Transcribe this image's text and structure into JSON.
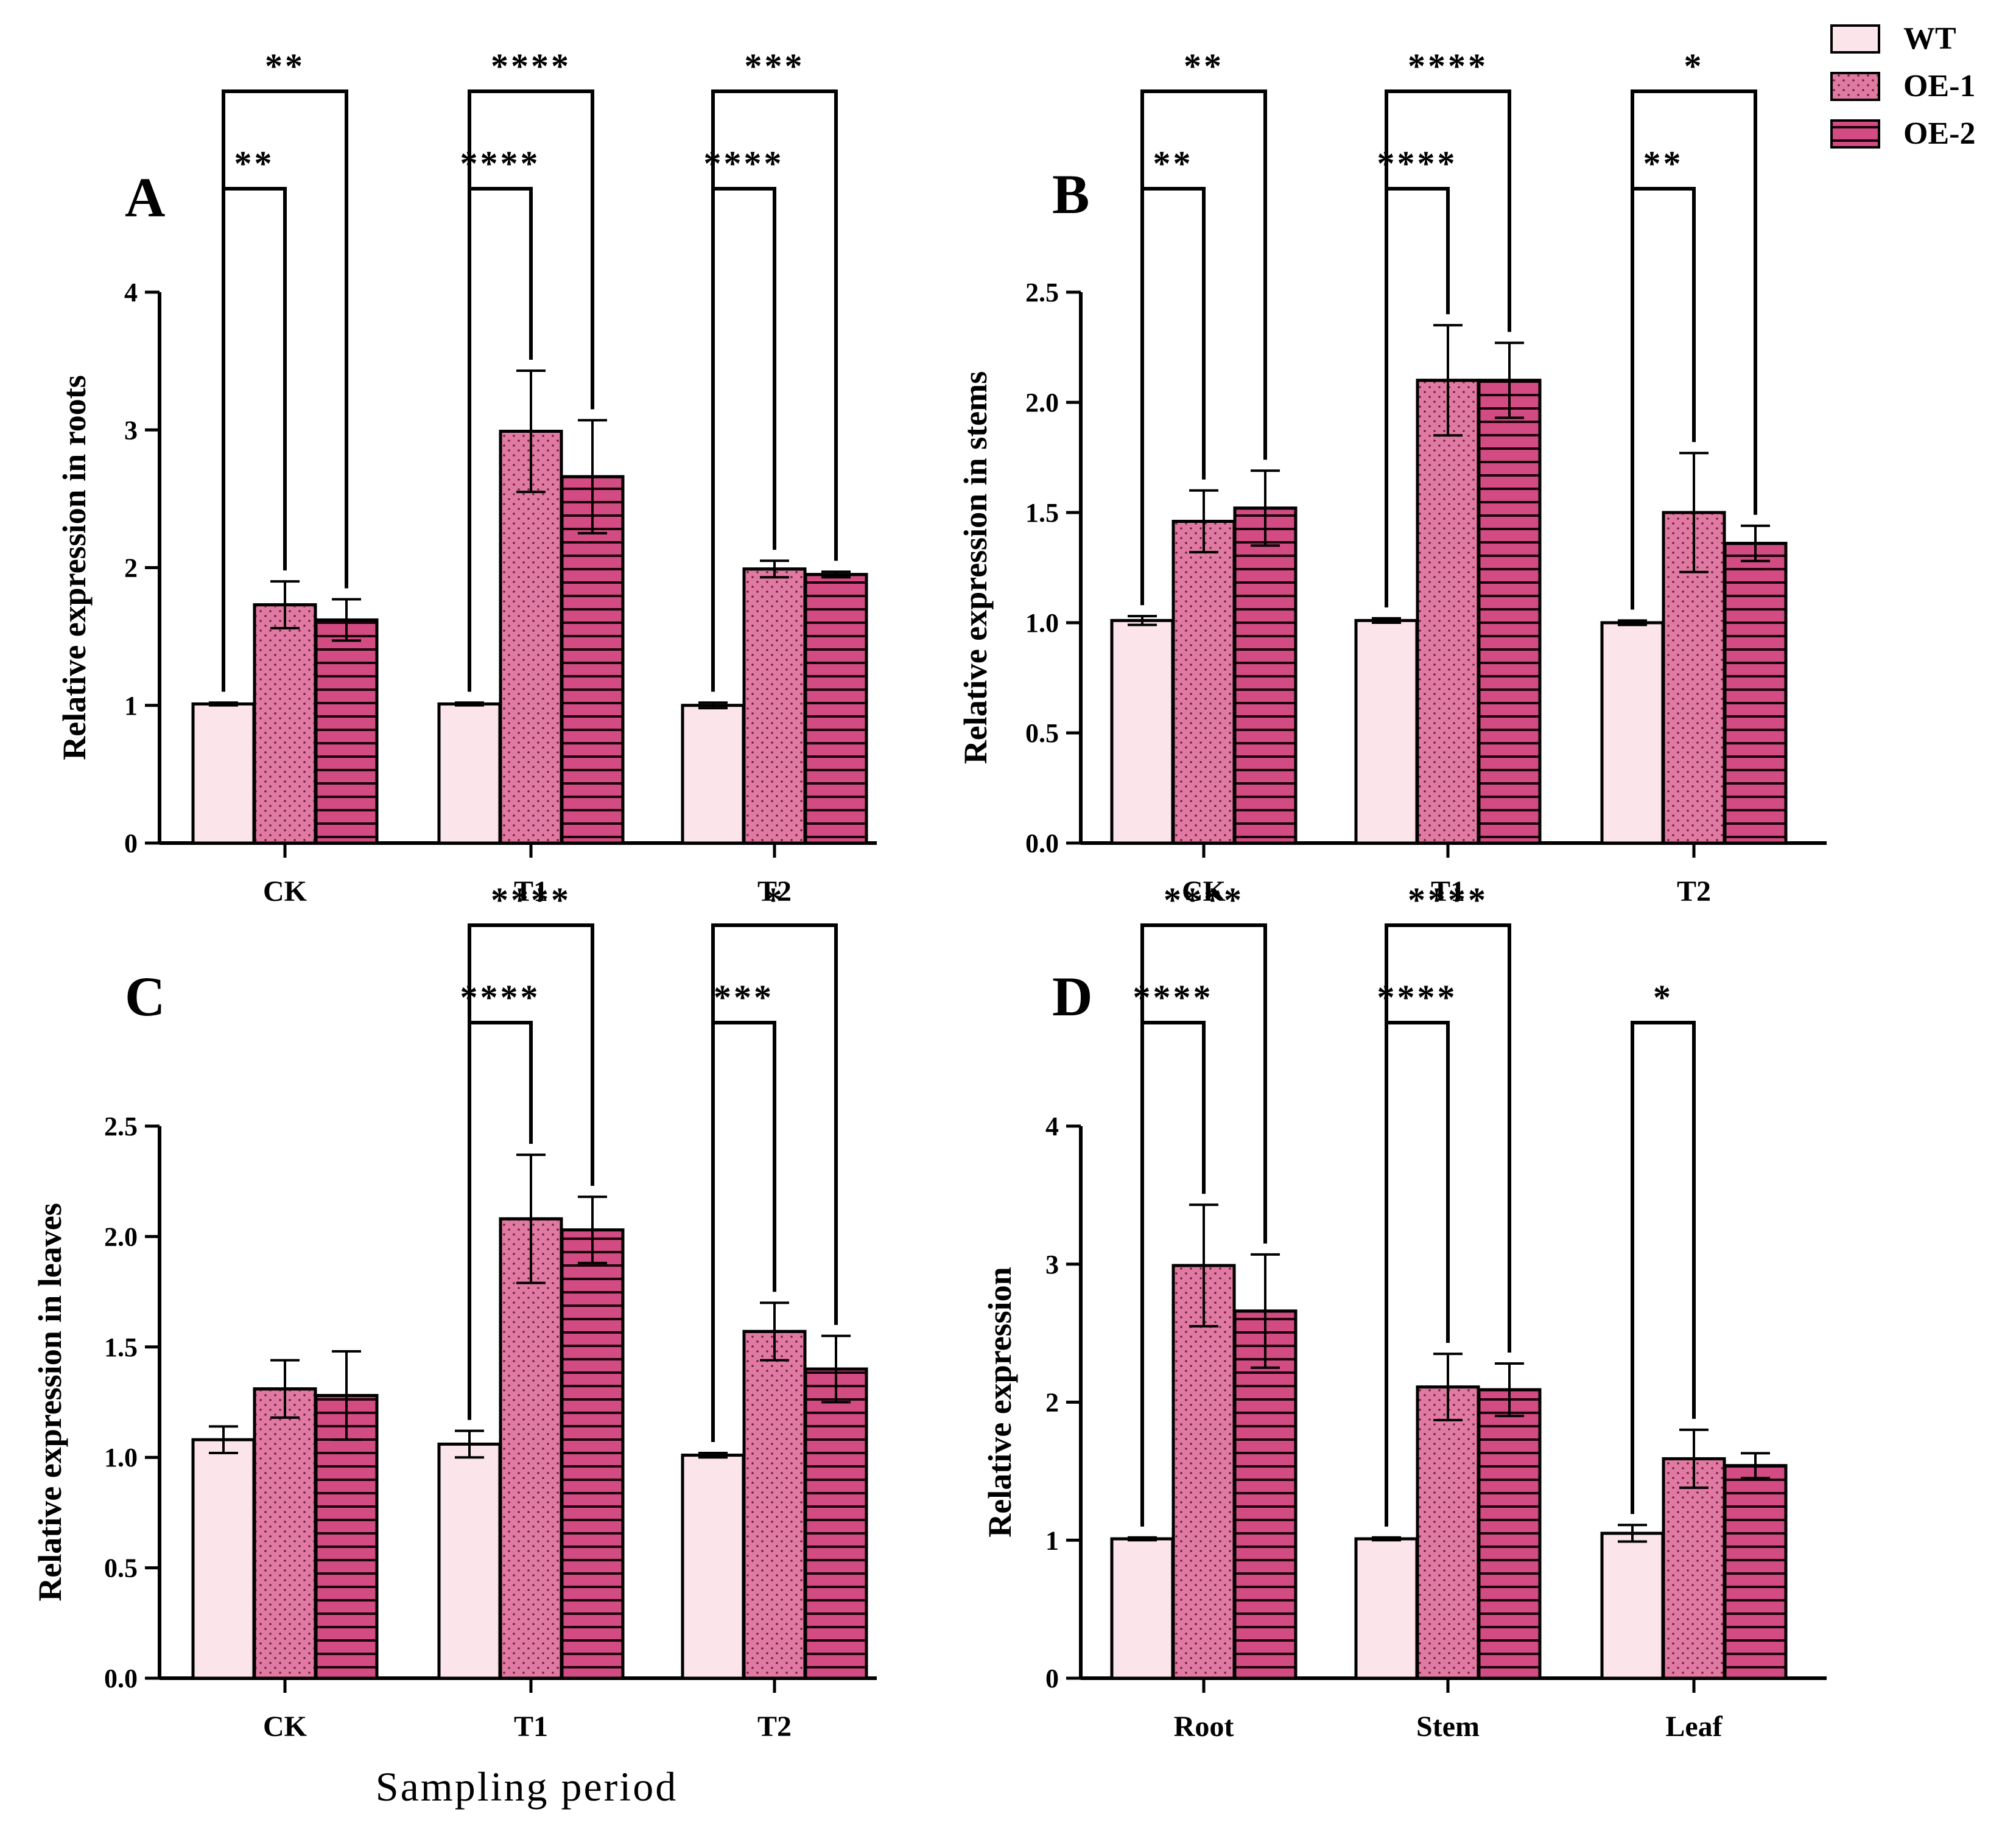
{
  "legend": {
    "items": [
      {
        "name": "WT",
        "color": "#fbe4ea",
        "pattern": "none"
      },
      {
        "name": "OE-1",
        "color": "#e07aa2",
        "pattern": "dots"
      },
      {
        "name": "OE-2",
        "color": "#d24b83",
        "pattern": "lines"
      }
    ]
  },
  "x_axis_title": "Sampling period",
  "chart_data": [
    {
      "type": "bar",
      "panel": "A",
      "ylabel": "Relative expression in roots",
      "categories": [
        "CK",
        "T1",
        "T2"
      ],
      "ylim": [
        0,
        4
      ],
      "yticks": [
        "0",
        "1",
        "2",
        "3",
        "4"
      ],
      "yticks_values": [
        0,
        1,
        2,
        3,
        4
      ],
      "series": [
        {
          "name": "WT",
          "values": [
            1.01,
            1.01,
            1.0
          ],
          "errors": [
            0.01,
            0.01,
            0.02
          ]
        },
        {
          "name": "OE-1",
          "values": [
            1.73,
            2.99,
            1.99
          ],
          "errors": [
            0.17,
            0.44,
            0.06
          ]
        },
        {
          "name": "OE-2",
          "values": [
            1.62,
            2.66,
            1.95
          ],
          "errors": [
            0.15,
            0.41,
            0.02
          ]
        }
      ],
      "significance": [
        {
          "category": 0,
          "from": 0,
          "to": 1,
          "label": "**",
          "level": 0
        },
        {
          "category": 0,
          "from": 0,
          "to": 2,
          "label": "**",
          "level": 1
        },
        {
          "category": 1,
          "from": 0,
          "to": 1,
          "label": "****",
          "level": 0
        },
        {
          "category": 1,
          "from": 0,
          "to": 2,
          "label": "****",
          "level": 1
        },
        {
          "category": 2,
          "from": 0,
          "to": 1,
          "label": "****",
          "level": 0
        },
        {
          "category": 2,
          "from": 0,
          "to": 2,
          "label": "***",
          "level": 1
        }
      ]
    },
    {
      "type": "bar",
      "panel": "B",
      "ylabel": "Relative expression in stems",
      "categories": [
        "CK",
        "T1",
        "T2"
      ],
      "ylim": [
        0,
        2.5
      ],
      "yticks": [
        "0.0",
        "0.5",
        "1.0",
        "1.5",
        "2.0",
        "2.5"
      ],
      "yticks_values": [
        0,
        0.5,
        1.0,
        1.5,
        2.0,
        2.5
      ],
      "series": [
        {
          "name": "WT",
          "values": [
            1.01,
            1.01,
            1.0
          ],
          "errors": [
            0.02,
            0.01,
            0.01
          ]
        },
        {
          "name": "OE-1",
          "values": [
            1.46,
            2.1,
            1.5
          ],
          "errors": [
            0.14,
            0.25,
            0.27
          ]
        },
        {
          "name": "OE-2",
          "values": [
            1.52,
            2.1,
            1.36
          ],
          "errors": [
            0.17,
            0.17,
            0.08
          ]
        }
      ],
      "significance": [
        {
          "category": 0,
          "from": 0,
          "to": 1,
          "label": "**",
          "level": 0
        },
        {
          "category": 0,
          "from": 0,
          "to": 2,
          "label": "**",
          "level": 1
        },
        {
          "category": 1,
          "from": 0,
          "to": 1,
          "label": "****",
          "level": 0
        },
        {
          "category": 1,
          "from": 0,
          "to": 2,
          "label": "****",
          "level": 1
        },
        {
          "category": 2,
          "from": 0,
          "to": 1,
          "label": "**",
          "level": 0
        },
        {
          "category": 2,
          "from": 0,
          "to": 2,
          "label": "*",
          "level": 1
        }
      ]
    },
    {
      "type": "bar",
      "panel": "C",
      "ylabel": "Relative expression in leaves",
      "categories": [
        "CK",
        "T1",
        "T2"
      ],
      "ylim": [
        0,
        2.5
      ],
      "yticks": [
        "0.0",
        "0.5",
        "1.0",
        "1.5",
        "2.0",
        "2.5"
      ],
      "yticks_values": [
        0,
        0.5,
        1.0,
        1.5,
        2.0,
        2.5
      ],
      "series": [
        {
          "name": "WT",
          "values": [
            1.08,
            1.06,
            1.01
          ],
          "errors": [
            0.06,
            0.06,
            0.01
          ]
        },
        {
          "name": "OE-1",
          "values": [
            1.31,
            2.08,
            1.57
          ],
          "errors": [
            0.13,
            0.29,
            0.13
          ]
        },
        {
          "name": "OE-2",
          "values": [
            1.28,
            2.03,
            1.4
          ],
          "errors": [
            0.2,
            0.15,
            0.15
          ]
        }
      ],
      "significance": [
        {
          "category": 1,
          "from": 0,
          "to": 1,
          "label": "****",
          "level": 0
        },
        {
          "category": 1,
          "from": 0,
          "to": 2,
          "label": "****",
          "level": 1
        },
        {
          "category": 2,
          "from": 0,
          "to": 1,
          "label": "***",
          "level": 0
        },
        {
          "category": 2,
          "from": 0,
          "to": 2,
          "label": "*",
          "level": 1
        }
      ]
    },
    {
      "type": "bar",
      "panel": "D",
      "ylabel": "Relative expression",
      "categories": [
        "Root",
        "Stem",
        "Leaf"
      ],
      "ylim": [
        0,
        4
      ],
      "yticks": [
        "0",
        "1",
        "2",
        "3",
        "4"
      ],
      "yticks_values": [
        0,
        1,
        2,
        3,
        4
      ],
      "series": [
        {
          "name": "WT",
          "values": [
            1.01,
            1.01,
            1.05
          ],
          "errors": [
            0.01,
            0.01,
            0.06
          ]
        },
        {
          "name": "OE-1",
          "values": [
            2.99,
            2.11,
            1.59
          ],
          "errors": [
            0.44,
            0.24,
            0.21
          ]
        },
        {
          "name": "OE-2",
          "values": [
            2.66,
            2.09,
            1.54
          ],
          "errors": [
            0.41,
            0.19,
            0.09
          ]
        }
      ],
      "significance": [
        {
          "category": 0,
          "from": 0,
          "to": 1,
          "label": "****",
          "level": 0
        },
        {
          "category": 0,
          "from": 0,
          "to": 2,
          "label": "****",
          "level": 1
        },
        {
          "category": 1,
          "from": 0,
          "to": 1,
          "label": "****",
          "level": 0
        },
        {
          "category": 1,
          "from": 0,
          "to": 2,
          "label": "****",
          "level": 1
        },
        {
          "category": 2,
          "from": 0,
          "to": 1,
          "label": "*",
          "level": 0
        }
      ]
    }
  ]
}
